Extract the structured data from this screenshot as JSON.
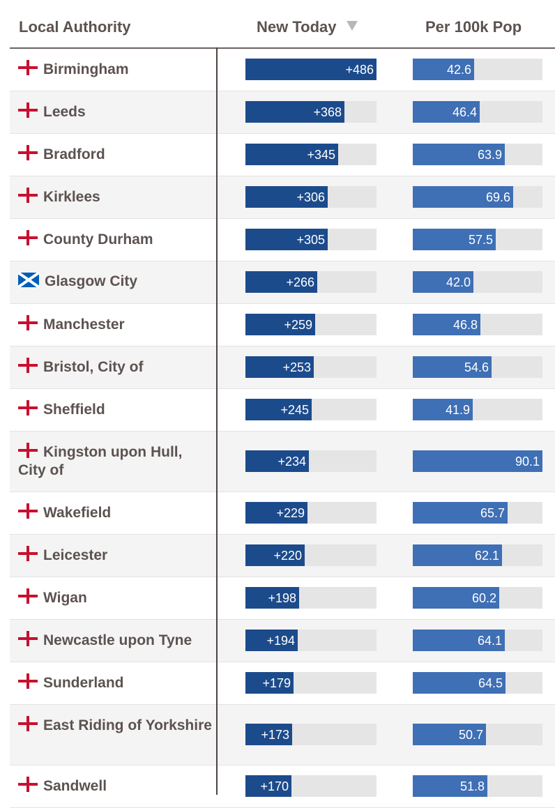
{
  "header": {
    "col_name": "Local Authority",
    "col_new": "New Today",
    "col_per": "Per 100k Pop",
    "sort_icon": "triangle-down-icon"
  },
  "colors": {
    "new_bar": "#1c4b8c",
    "per_bar": "#3f6fb5",
    "track": "#e5e5e5",
    "england_red": "#c8102e",
    "scotland_blue": "#005eb8"
  },
  "scale": {
    "new_max": 486,
    "per_max": 90.1
  },
  "rows": [
    {
      "name": "Birmingham",
      "flag": "england",
      "new": 486,
      "new_label": "+486",
      "per": 42.6,
      "per_label": "42.6"
    },
    {
      "name": "Leeds",
      "flag": "england",
      "new": 368,
      "new_label": "+368",
      "per": 46.4,
      "per_label": "46.4"
    },
    {
      "name": "Bradford",
      "flag": "england",
      "new": 345,
      "new_label": "+345",
      "per": 63.9,
      "per_label": "63.9"
    },
    {
      "name": "Kirklees",
      "flag": "england",
      "new": 306,
      "new_label": "+306",
      "per": 69.6,
      "per_label": "69.6"
    },
    {
      "name": "County Durham",
      "flag": "england",
      "new": 305,
      "new_label": "+305",
      "per": 57.5,
      "per_label": "57.5"
    },
    {
      "name": "Glasgow City",
      "flag": "scotland",
      "new": 266,
      "new_label": "+266",
      "per": 42.0,
      "per_label": "42.0"
    },
    {
      "name": "Manchester",
      "flag": "england",
      "new": 259,
      "new_label": "+259",
      "per": 46.8,
      "per_label": "46.8"
    },
    {
      "name": "Bristol, City of",
      "flag": "england",
      "new": 253,
      "new_label": "+253",
      "per": 54.6,
      "per_label": "54.6"
    },
    {
      "name": "Sheffield",
      "flag": "england",
      "new": 245,
      "new_label": "+245",
      "per": 41.9,
      "per_label": "41.9"
    },
    {
      "name": "Kingston upon Hull, City of",
      "flag": "england",
      "new": 234,
      "new_label": "+234",
      "per": 90.1,
      "per_label": "90.1",
      "tall": true
    },
    {
      "name": "Wakefield",
      "flag": "england",
      "new": 229,
      "new_label": "+229",
      "per": 65.7,
      "per_label": "65.7"
    },
    {
      "name": "Leicester",
      "flag": "england",
      "new": 220,
      "new_label": "+220",
      "per": 62.1,
      "per_label": "62.1"
    },
    {
      "name": "Wigan",
      "flag": "england",
      "new": 198,
      "new_label": "+198",
      "per": 60.2,
      "per_label": "60.2"
    },
    {
      "name": "Newcastle upon Tyne",
      "flag": "england",
      "new": 194,
      "new_label": "+194",
      "per": 64.1,
      "per_label": "64.1"
    },
    {
      "name": "Sunderland",
      "flag": "england",
      "new": 179,
      "new_label": "+179",
      "per": 64.5,
      "per_label": "64.5"
    },
    {
      "name": "East Riding of Yorkshire",
      "flag": "england",
      "new": 173,
      "new_label": "+173",
      "per": 50.7,
      "per_label": "50.7",
      "tall": true
    },
    {
      "name": "Sandwell",
      "flag": "england",
      "new": 170,
      "new_label": "+170",
      "per": 51.8,
      "per_label": "51.8"
    }
  ]
}
